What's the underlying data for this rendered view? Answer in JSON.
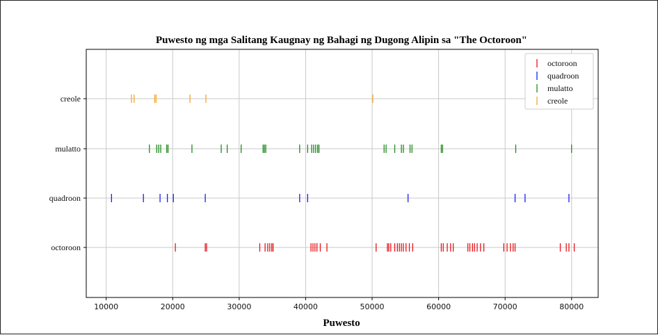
{
  "chart_data": {
    "type": "scatter",
    "title": "Puwesto ng mga Salitang Kaugnay ng Bahagi ng Dugong Alipin sa \"The Octoroon\"",
    "xlabel": "Puwesto",
    "ylabel": "",
    "xlim": [
      7000,
      84000
    ],
    "x_ticks": [
      10000,
      20000,
      30000,
      40000,
      50000,
      60000,
      70000,
      80000
    ],
    "x_tick_labels": [
      "10000",
      "20000",
      "30000",
      "40000",
      "50000",
      "60000",
      "70000",
      "80000"
    ],
    "categories": [
      "octoroon",
      "quadroon",
      "mulatto",
      "creole"
    ],
    "grid": true,
    "legend_position": "top-right",
    "series": [
      {
        "name": "octoroon",
        "color": "#e8141a",
        "x": [
          20400,
          24900,
          25100,
          33100,
          33900,
          34300,
          34600,
          34900,
          35100,
          40800,
          41100,
          41400,
          41700,
          42200,
          43200,
          50600,
          52300,
          52500,
          52800,
          53400,
          53800,
          54100,
          54400,
          54700,
          55100,
          55600,
          56100,
          60400,
          60700,
          61300,
          61800,
          62200,
          64400,
          64700,
          65100,
          65400,
          65800,
          66300,
          66800,
          69800,
          70300,
          70800,
          71200,
          71500,
          78300,
          79200,
          79600,
          80400
        ]
      },
      {
        "name": "quadroon",
        "color": "#1a1aff",
        "x": [
          10800,
          15600,
          18100,
          19200,
          20100,
          24900,
          39100,
          40300,
          55400,
          71500,
          73000,
          79600
        ]
      },
      {
        "name": "mulatto",
        "color": "#1e8a1e",
        "x": [
          16500,
          17600,
          17900,
          18200,
          19100,
          19300,
          22900,
          27300,
          28200,
          30300,
          33600,
          33800,
          34000,
          39100,
          40300,
          40900,
          41200,
          41500,
          41800,
          42000,
          51800,
          52100,
          53400,
          54400,
          54700,
          55700,
          56000,
          60400,
          60600,
          71600,
          80000
        ]
      },
      {
        "name": "creole",
        "color": "#f5a623",
        "x": [
          13800,
          14200,
          17300,
          17500,
          22600,
          25000,
          50100
        ]
      }
    ]
  }
}
